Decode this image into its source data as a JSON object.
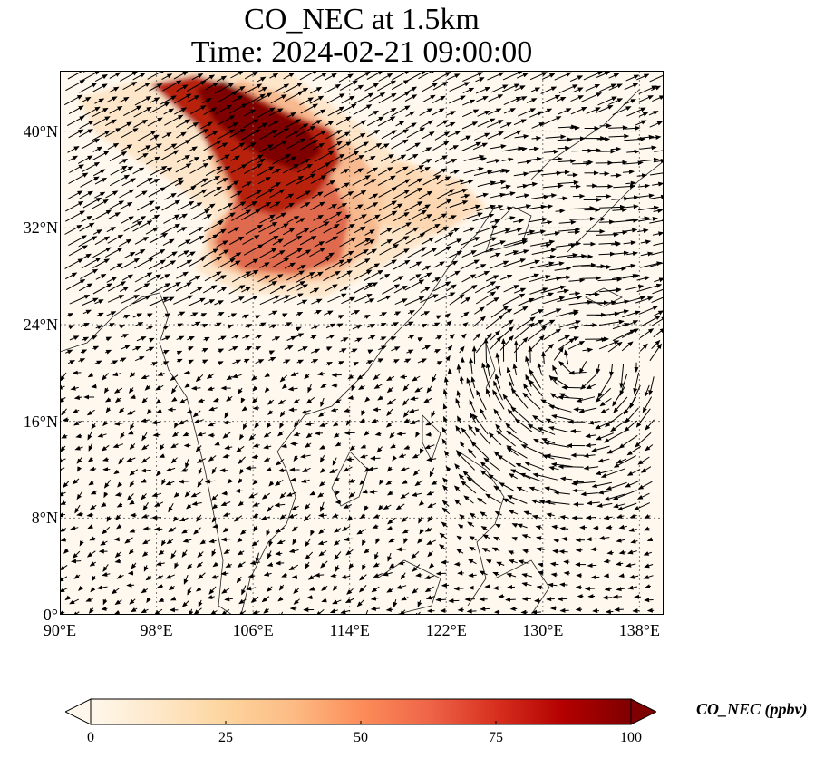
{
  "title": {
    "line1": "CO_NEC at 1.5km",
    "line2": "Time: 2024-02-21 09:00:00"
  },
  "map": {
    "extent": {
      "lon": [
        90,
        140
      ],
      "lat": [
        0,
        45
      ]
    },
    "lat_ticks": [
      {
        "value": 0,
        "label": "0°"
      },
      {
        "value": 8,
        "label": "8°N"
      },
      {
        "value": 16,
        "label": "16°N"
      },
      {
        "value": 24,
        "label": "24°N"
      },
      {
        "value": 32,
        "label": "32°N"
      },
      {
        "value": 40,
        "label": "40°N"
      }
    ],
    "lon_ticks": [
      {
        "value": 90,
        "label": "90°E"
      },
      {
        "value": 98,
        "label": "98°E"
      },
      {
        "value": 106,
        "label": "106°E"
      },
      {
        "value": 114,
        "label": "114°E"
      },
      {
        "value": 122,
        "label": "122°E"
      },
      {
        "value": 130,
        "label": "130°E"
      },
      {
        "value": 138,
        "label": "138°E"
      }
    ],
    "gridlines": true,
    "plume_color_scale": "OrRd"
  },
  "colorbar": {
    "label": "CO_NEC (ppbv)",
    "min": 0,
    "max": 100,
    "extend": "both",
    "ticks": [
      {
        "value": 0,
        "label": "0"
      },
      {
        "value": 25,
        "label": "25"
      },
      {
        "value": 50,
        "label": "50"
      },
      {
        "value": 75,
        "label": "75"
      },
      {
        "value": 100,
        "label": "100"
      }
    ],
    "stops": [
      "#fff7ec",
      "#fee8c8",
      "#fdd49e",
      "#fdbb84",
      "#fc8d59",
      "#ef6548",
      "#d7301f",
      "#b30000",
      "#7f0000"
    ]
  }
}
